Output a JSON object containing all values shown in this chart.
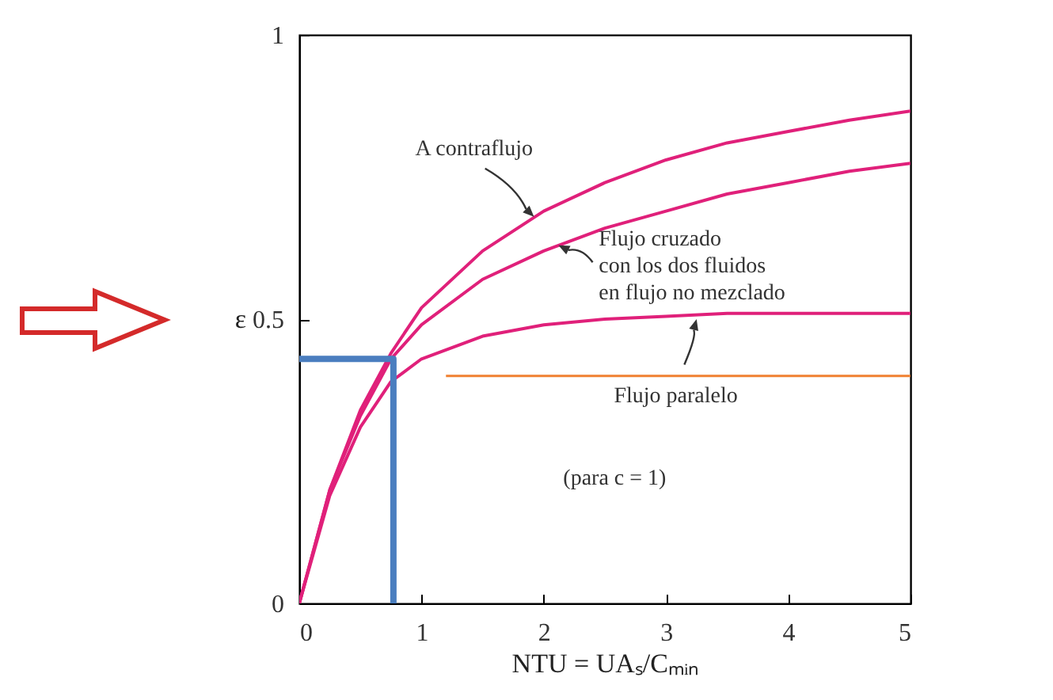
{
  "chart_data": {
    "type": "line",
    "xlabel": "NTU = UAₛ/Cₘᵢₙ",
    "ylabel": "ε",
    "xlim": [
      0,
      5
    ],
    "ylim": [
      0,
      1
    ],
    "xticks": [
      0,
      1,
      2,
      3,
      4,
      5
    ],
    "yticks": [
      0,
      0.5,
      1
    ],
    "grid": false,
    "marker": "none",
    "line_style": "solid",
    "x": [
      0,
      0.25,
      0.5,
      0.75,
      1,
      1.5,
      2,
      2.5,
      3,
      3.5,
      4,
      4.5,
      5
    ],
    "series": [
      {
        "color": "#e0207a",
        "values": [
          0,
          0.2,
          0.34,
          0.44,
          0.52,
          0.62,
          0.69,
          0.74,
          0.78,
          0.81,
          0.83,
          0.85,
          0.866
        ]
      },
      {
        "color": "#e0207a",
        "values": [
          0,
          0.2,
          0.33,
          0.43,
          0.49,
          0.57,
          0.62,
          0.66,
          0.69,
          0.72,
          0.74,
          0.76,
          0.774
        ]
      },
      {
        "color": "#e0207a",
        "values": [
          0,
          0.19,
          0.31,
          0.39,
          0.43,
          0.47,
          0.49,
          0.5,
          0.505,
          0.51,
          0.51,
          0.51,
          0.51
        ]
      },
      {
        "color": "#4a7ebf",
        "x": [
          0,
          0.77,
          0.77
        ],
        "values": [
          0.43,
          0.43,
          0
        ]
      },
      {
        "color": "#f08030",
        "x": [
          1.2,
          5
        ],
        "values": [
          0.4,
          0.4
        ]
      }
    ],
    "annotations": [
      {
        "text": "A contraflujo",
        "x": 1.92,
        "y": 0.68
      },
      {
        "text": "Flujo cruzado\ncon los dos fluidos\nen flujo no mezclado",
        "x": 2.12,
        "y": 0.63
      },
      {
        "text": "Flujo paralelo",
        "x": 3.25,
        "y": 0.5
      },
      "(para c = 1)"
    ]
  }
}
